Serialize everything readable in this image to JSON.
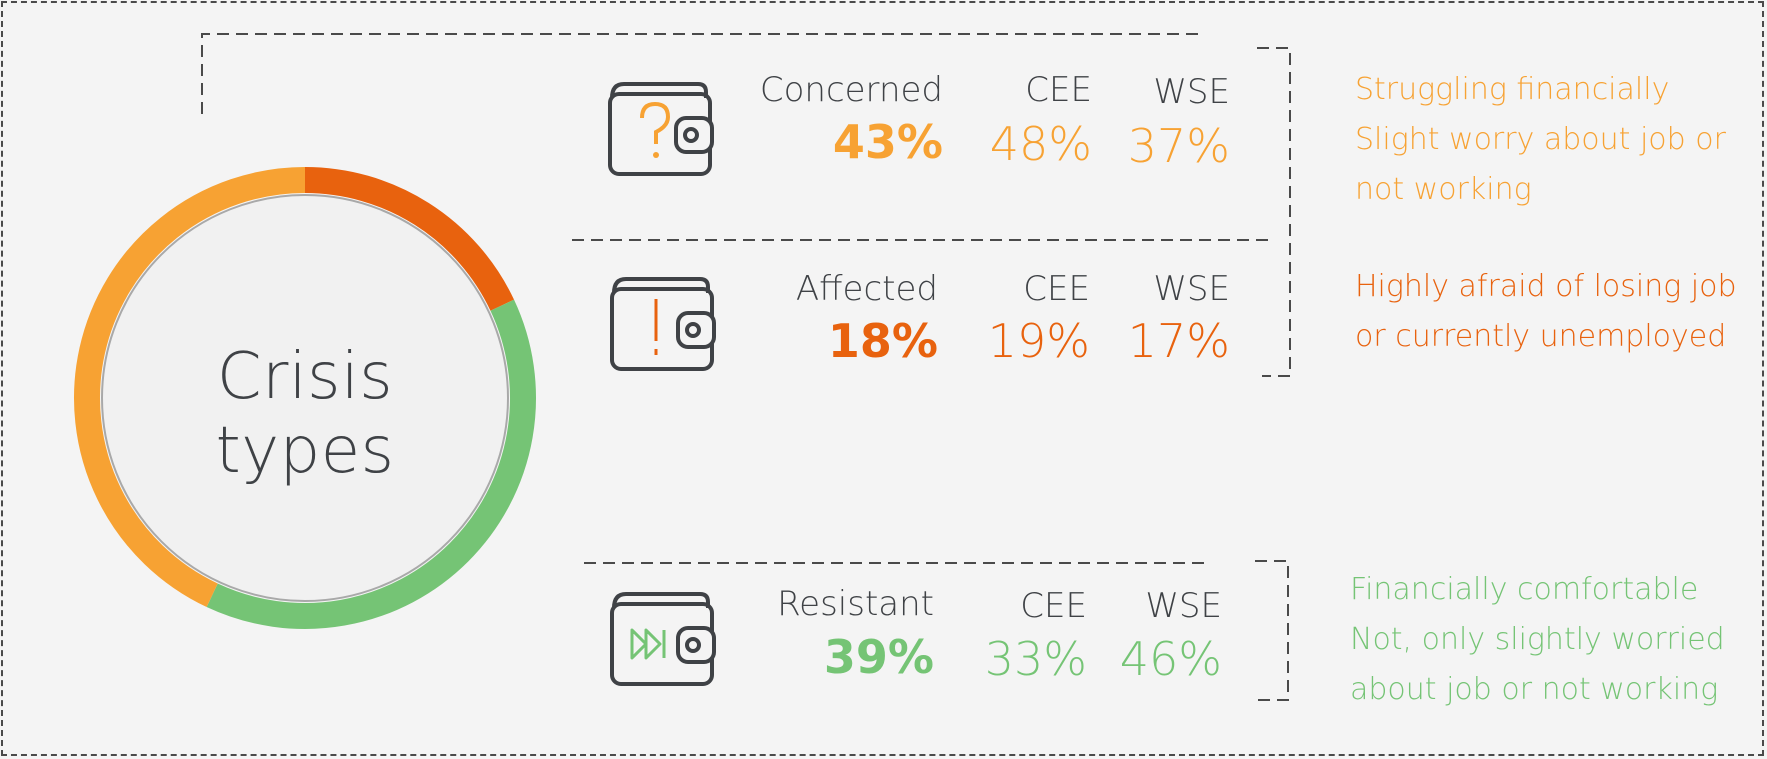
{
  "title": "Crisis types",
  "colors": {
    "concerned": "#f7a233",
    "affected": "#e8620e",
    "resistant": "#75c475",
    "text": "#3f4246"
  },
  "chart_data": {
    "type": "pie",
    "title": "Crisis types",
    "categories": [
      "Concerned",
      "Affected",
      "Resistant"
    ],
    "values": [
      43,
      18,
      39
    ],
    "unit": "%",
    "breakdown": [
      {
        "label": "Concerned",
        "total": "43%",
        "cee_label": "CEE",
        "cee": "48%",
        "wse_label": "WSE",
        "wse": "37%",
        "description": [
          "Struggling financially",
          "Slight worry about job or",
          "not working"
        ]
      },
      {
        "label": "Affected",
        "total": "18%",
        "cee_label": "CEE",
        "cee": "19%",
        "wse_label": "WSE",
        "wse": "17%",
        "description": [
          "Highly afraid of losing job",
          "or currently unemployed"
        ]
      },
      {
        "label": "Resistant",
        "total": "39%",
        "cee_label": "CEE",
        "cee": "33%",
        "wse_label": "WSE",
        "wse": "46%",
        "description": [
          "Financially comfortable",
          "Not, only slightly worried",
          "about job or not working"
        ]
      }
    ],
    "icons": [
      "wallet-question-icon",
      "wallet-exclamation-icon",
      "wallet-fast-forward-icon"
    ]
  }
}
